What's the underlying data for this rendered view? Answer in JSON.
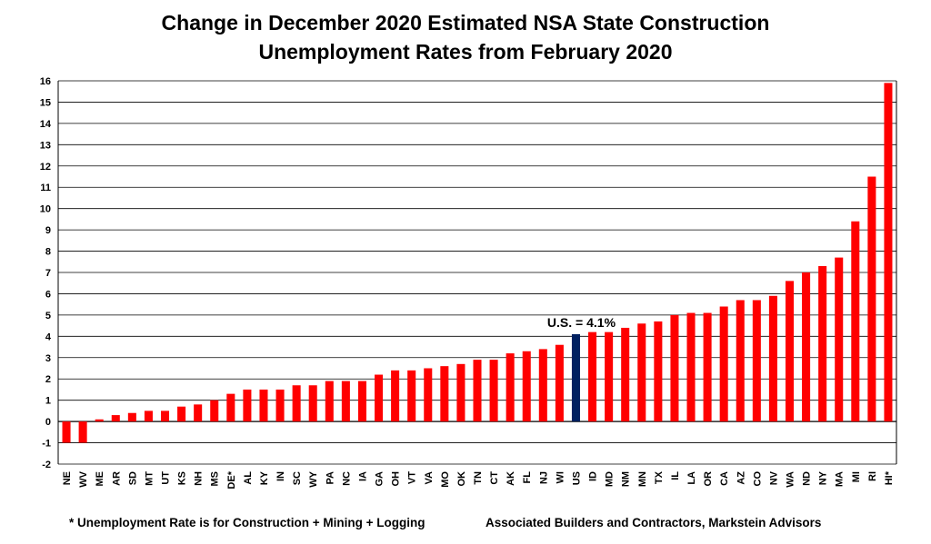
{
  "chart_data": {
    "type": "bar",
    "title_lines": [
      "Change in December 2020 Estimated NSA State Construction",
      "Unemployment Rates from February 2020"
    ],
    "categories": [
      "NE",
      "WV",
      "ME",
      "AR",
      "SD",
      "MT",
      "UT",
      "KS",
      "NH",
      "MS",
      "DE*",
      "AL",
      "KY",
      "IN",
      "SC",
      "WY",
      "PA",
      "NC",
      "IA",
      "GA",
      "OH",
      "VT",
      "VA",
      "MO",
      "OK",
      "TN",
      "CT",
      "AK",
      "FL",
      "NJ",
      "WI",
      "US",
      "ID",
      "MD",
      "NM",
      "MN",
      "TX",
      "IL",
      "LA",
      "OR",
      "CA",
      "AZ",
      "CO",
      "NV",
      "WA",
      "ND",
      "NY",
      "MA",
      "MI",
      "RI",
      "HI*"
    ],
    "values": [
      -1.0,
      -1.0,
      0.1,
      0.3,
      0.4,
      0.5,
      0.5,
      0.7,
      0.8,
      1.0,
      1.3,
      1.5,
      1.5,
      1.5,
      1.7,
      1.7,
      1.9,
      1.9,
      1.9,
      2.2,
      2.4,
      2.4,
      2.5,
      2.6,
      2.7,
      2.9,
      2.9,
      3.2,
      3.3,
      3.4,
      3.6,
      4.1,
      4.2,
      4.2,
      4.4,
      4.6,
      4.7,
      5.0,
      5.1,
      5.1,
      5.4,
      5.7,
      5.7,
      5.9,
      6.6,
      7.0,
      7.3,
      7.7,
      9.4,
      11.5,
      15.9
    ],
    "ylim": [
      -2,
      16
    ],
    "yticks": [
      -2,
      -1,
      0,
      1,
      2,
      3,
      4,
      5,
      6,
      7,
      8,
      9,
      10,
      11,
      12,
      13,
      14,
      15,
      16
    ],
    "grid": true,
    "legend": "none",
    "colors": {
      "bar": "#ff0000",
      "highlight": "#002060",
      "grid": "#000000"
    },
    "highlight_category": "US",
    "annotation": "U.S. = 4.1%"
  },
  "footer": {
    "left": "* Unemployment Rate is for Construction + Mining + Logging",
    "right": "Associated Builders and Contractors, Markstein Advisors"
  }
}
